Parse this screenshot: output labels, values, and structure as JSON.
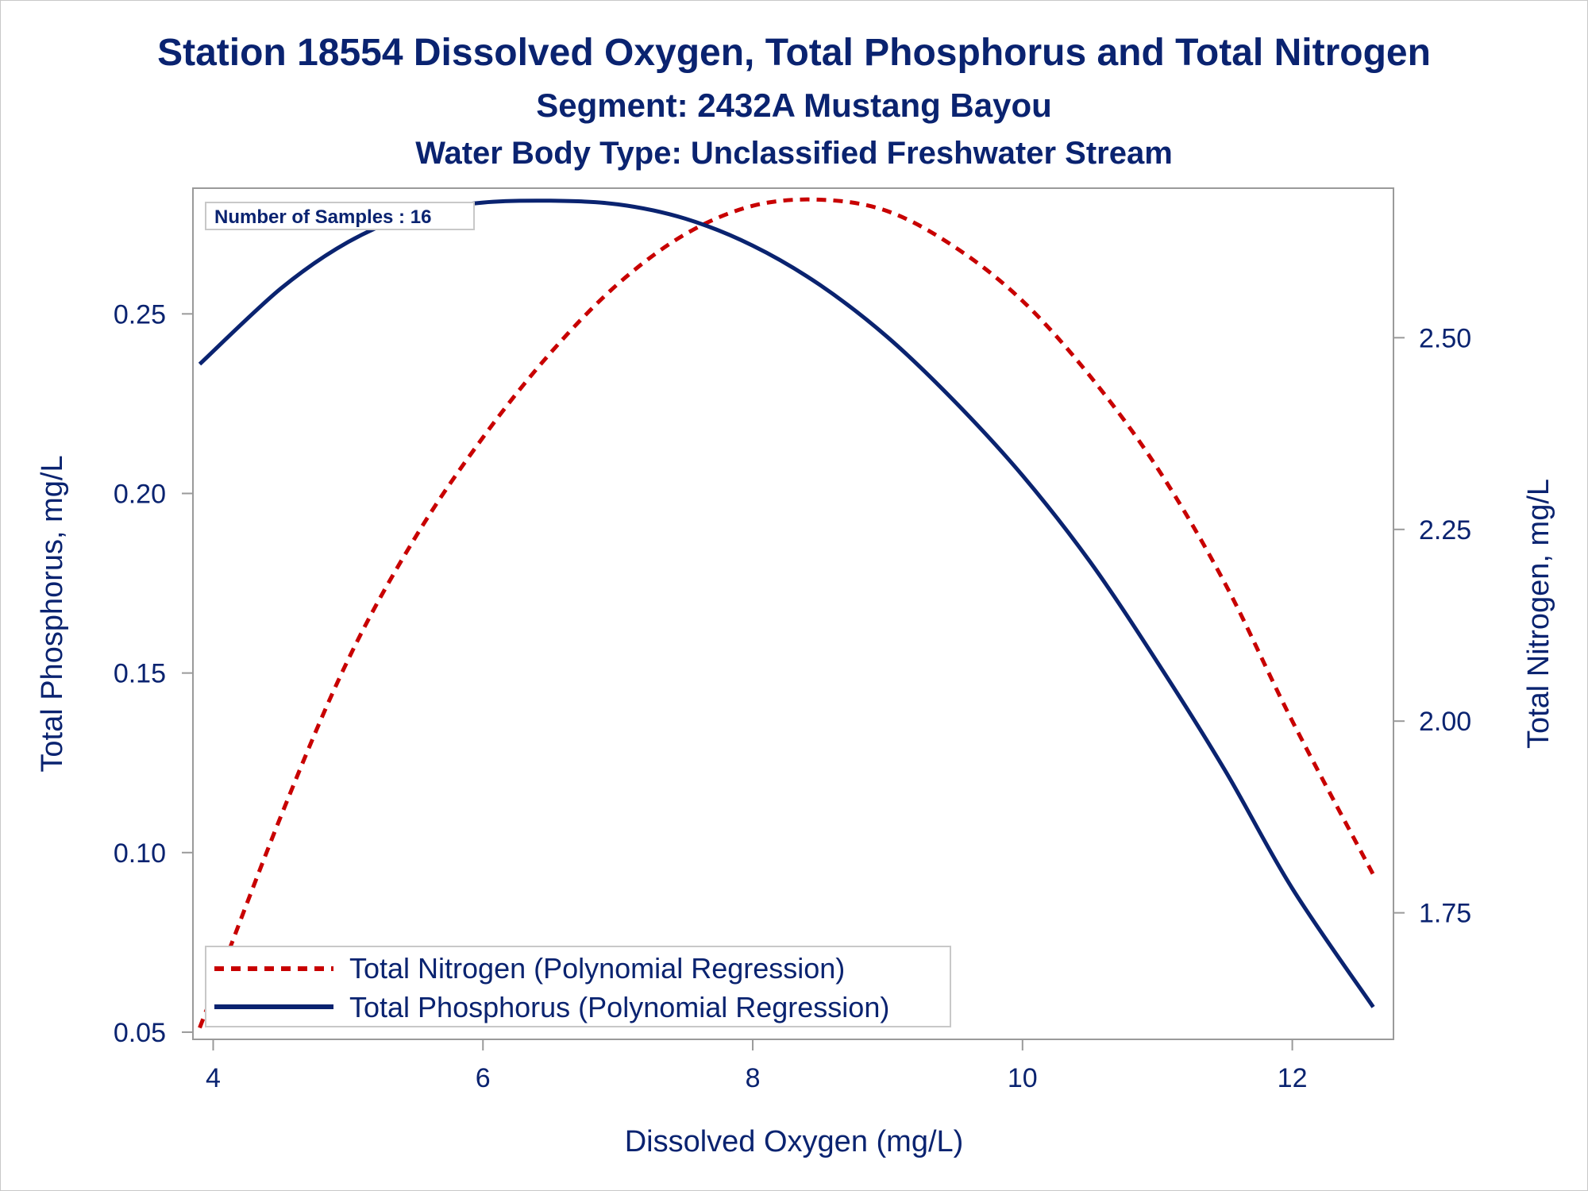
{
  "chart_data": {
    "type": "line",
    "title": "Station 18554  Dissolved Oxygen, Total Phosphorus and Total Nitrogen",
    "subtitle": "Segment: 2432A  Mustang Bayou",
    "subtitle2": "Water Body Type: Unclassified Freshwater Stream",
    "xlabel": "Dissolved Oxygen (mg/L)",
    "ylabel_left": "Total Phosphorus, mg/L",
    "ylabel_right": "Total Nitrogen, mg/L",
    "xlim": [
      3.85,
      12.75
    ],
    "ylim_left": [
      0.048,
      0.285
    ],
    "ylim_right": [
      1.585,
      2.695
    ],
    "x_ticks": [
      4,
      6,
      8,
      10,
      12
    ],
    "y_left_ticks": [
      "0.05",
      "0.10",
      "0.15",
      "0.20",
      "0.25"
    ],
    "y_right_ticks": [
      "1.75",
      "2.00",
      "2.25",
      "2.50"
    ],
    "annotation": "Number of Samples : 16",
    "legend_position": "bottom-left",
    "series": [
      {
        "name": "Total Nitrogen (Polynomial Regression)",
        "axis": "right",
        "style": "dashed",
        "color": "#c80000",
        "x": [
          3.9,
          4.5,
          5.0,
          5.5,
          6.0,
          6.5,
          7.0,
          7.5,
          8.0,
          8.5,
          9.0,
          9.5,
          10.0,
          10.5,
          11.0,
          11.5,
          12.0,
          12.6
        ],
        "values": [
          1.6,
          1.875,
          2.08,
          2.24,
          2.37,
          2.48,
          2.57,
          2.635,
          2.672,
          2.68,
          2.665,
          2.618,
          2.548,
          2.45,
          2.33,
          2.18,
          2.0,
          1.8
        ]
      },
      {
        "name": "Total Phosphorus (Polynomial Regression)",
        "axis": "left",
        "style": "solid",
        "color": "#0a2370",
        "x": [
          3.9,
          4.5,
          5.0,
          5.5,
          6.0,
          6.5,
          7.0,
          7.5,
          8.0,
          8.5,
          9.0,
          9.5,
          10.0,
          10.5,
          11.0,
          11.5,
          12.0,
          12.6
        ],
        "values": [
          0.236,
          0.257,
          0.27,
          0.278,
          0.281,
          0.2815,
          0.2805,
          0.2765,
          0.269,
          0.258,
          0.2435,
          0.2255,
          0.205,
          0.181,
          0.153,
          0.123,
          0.09,
          0.057
        ]
      }
    ]
  },
  "colors": {
    "text": "#0a2370",
    "nitrogen": "#c80000",
    "phosphorus": "#0a2370",
    "axis": "#9a9a9a"
  }
}
